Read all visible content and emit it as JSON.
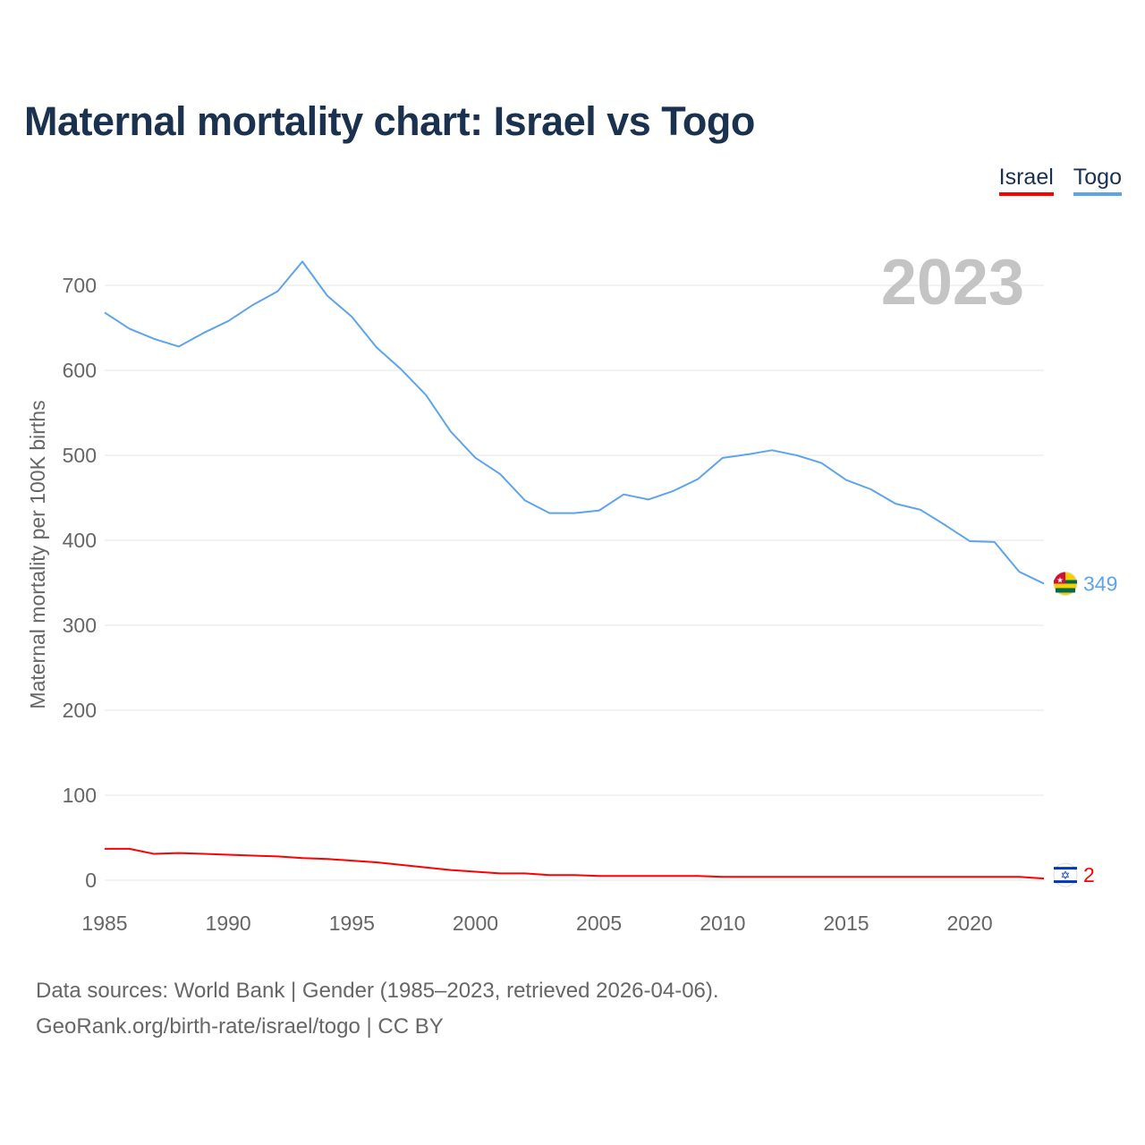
{
  "title": "Maternal mortality chart: Israel vs Togo",
  "footer": {
    "line1": "Data sources: World Bank | Gender (1985–2023, retrieved 2026-04-06).",
    "line2": "GeoRank.org/birth-rate/israel/togo | CC BY"
  },
  "chart_data": {
    "type": "line",
    "title": "Maternal mortality chart: Israel vs Togo",
    "xlabel": "",
    "ylabel": "Maternal mortality per 100K births",
    "year_label": "2023",
    "xlim": [
      1985,
      2023
    ],
    "ylim": [
      0,
      750
    ],
    "xticks": [
      1985,
      1990,
      1995,
      2000,
      2005,
      2010,
      2015,
      2020
    ],
    "yticks": [
      0,
      100,
      200,
      300,
      400,
      500,
      600,
      700
    ],
    "grid": true,
    "legend_position": "top-right",
    "x": [
      1985,
      1986,
      1987,
      1988,
      1989,
      1990,
      1991,
      1992,
      1993,
      1994,
      1995,
      1996,
      1997,
      1998,
      1999,
      2000,
      2001,
      2002,
      2003,
      2004,
      2005,
      2006,
      2007,
      2008,
      2009,
      2010,
      2011,
      2012,
      2013,
      2014,
      2015,
      2016,
      2017,
      2018,
      2019,
      2020,
      2021,
      2022,
      2023
    ],
    "series": [
      {
        "name": "Israel",
        "color": "#ff0000",
        "end_label": "2",
        "values": [
          37,
          37,
          31,
          32,
          31,
          30,
          29,
          28,
          26,
          25,
          23,
          21,
          18,
          15,
          12,
          10,
          8,
          8,
          6,
          6,
          5,
          5,
          5,
          5,
          5,
          4,
          4,
          4,
          4,
          4,
          4,
          4,
          4,
          4,
          4,
          4,
          4,
          4,
          2
        ]
      },
      {
        "name": "Togo",
        "color": "#5ea4ea",
        "end_label": "349",
        "values": [
          668,
          649,
          637,
          628,
          644,
          658,
          677,
          693,
          728,
          688,
          663,
          627,
          601,
          571,
          528,
          497,
          478,
          447,
          432,
          432,
          435,
          454,
          448,
          458,
          472,
          497,
          501,
          506,
          500,
          491,
          471,
          460,
          443,
          436,
          418,
          399,
          398,
          363,
          349
        ]
      }
    ]
  }
}
